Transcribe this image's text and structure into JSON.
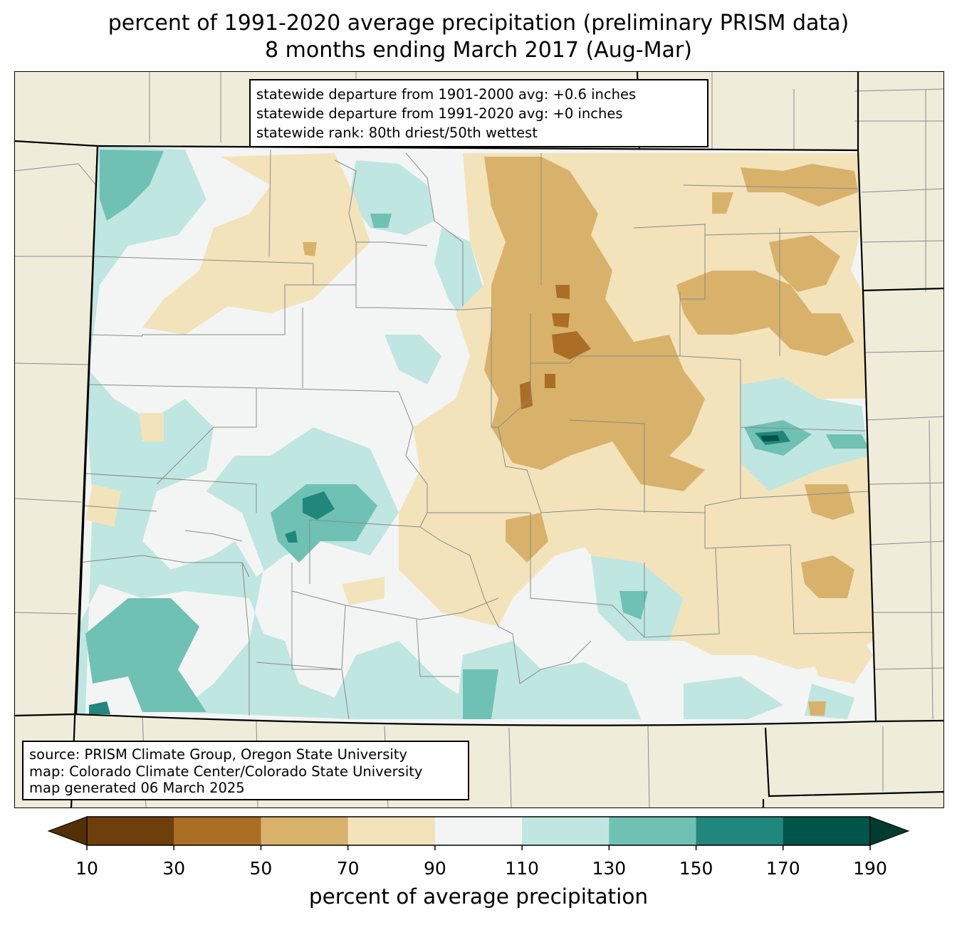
{
  "title": {
    "line1": "percent of 1991-2020 average precipitation (preliminary PRISM data)",
    "line2": "8 months ending March 2017 (Aug-Mar)"
  },
  "stats": {
    "line1": "statewide departure from 1901-2000 avg: +0.6 inches",
    "line2": "statewide departure from 1991-2020 avg: +0 inches",
    "line3": "statewide rank: 80th driest/50th wettest"
  },
  "source": {
    "line1": "source: PRISM Climate Group, Oregon State University",
    "line2": "map: Colorado Climate Center/Colorado State University",
    "line3": "map generated 06 March 2025"
  },
  "colorbar": {
    "label": "percent of average precipitation",
    "ticks": [
      "10",
      "30",
      "50",
      "70",
      "90",
      "110",
      "130",
      "150",
      "170",
      "190"
    ],
    "colors": [
      "#6e3f0c",
      "#ab6e24",
      "#d8b26b",
      "#f3e3bb",
      "#f3f5f4",
      "#bfe6e1",
      "#6fc1b4",
      "#21877c",
      "#01544a"
    ],
    "under_color": "#533005",
    "over_color": "#003c30"
  },
  "map": {
    "land_color": "#efedda",
    "region": "Colorado"
  }
}
